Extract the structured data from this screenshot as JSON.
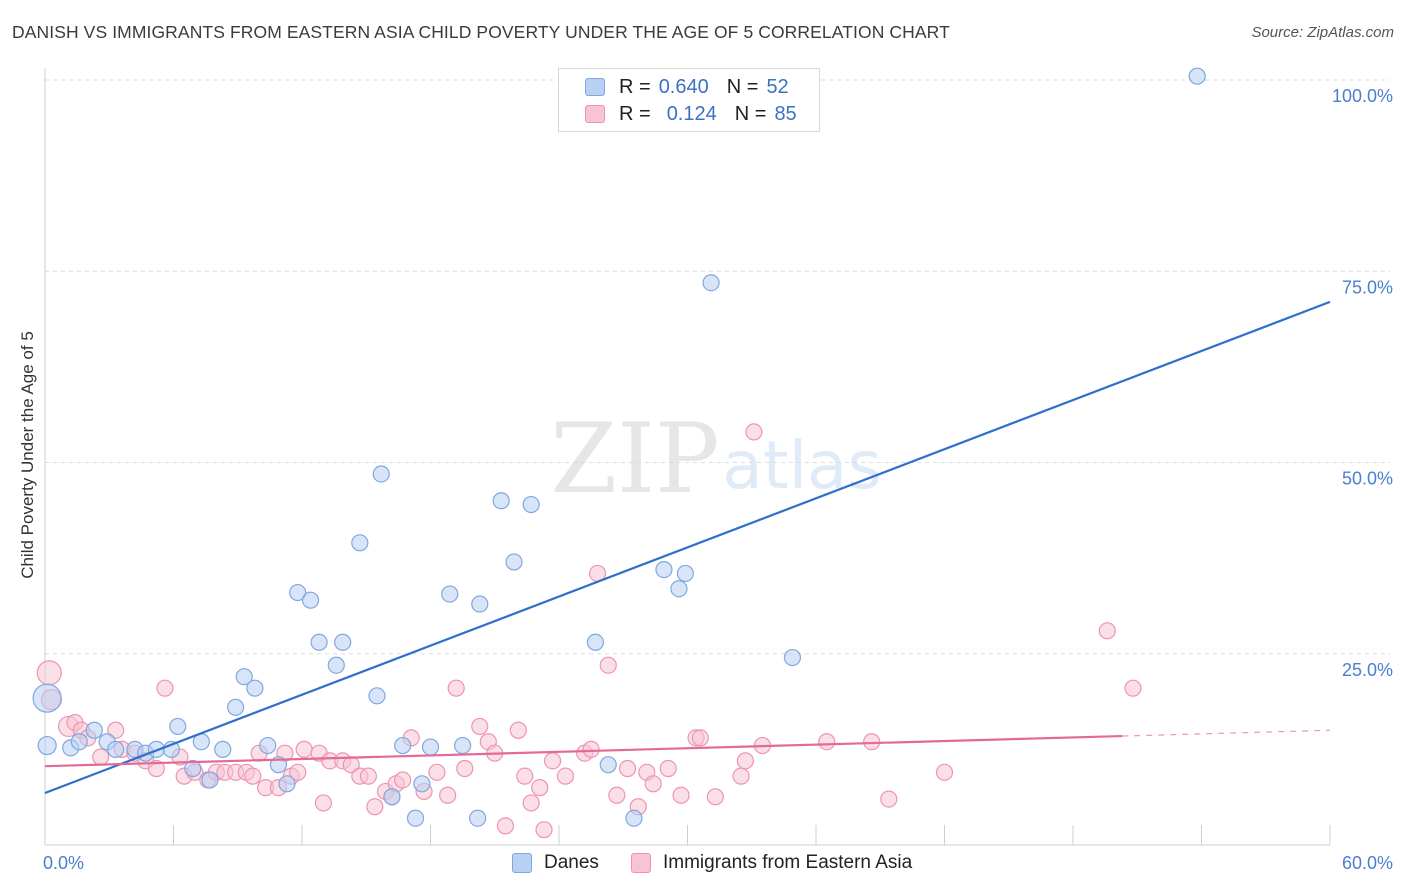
{
  "header": {
    "title": "DANISH VS IMMIGRANTS FROM EASTERN ASIA CHILD POVERTY UNDER THE AGE OF 5 CORRELATION CHART",
    "source": "Source: ZipAtlas.com"
  },
  "watermark": {
    "zip": "ZIP",
    "atlas": "atlas"
  },
  "legend": {
    "rows": [
      {
        "r_label": "R =",
        "r_value": "0.640",
        "n_label": "N =",
        "n_value": "52"
      },
      {
        "r_label": "R =",
        "r_value": "0.124",
        "n_label": "N =",
        "n_value": "85"
      }
    ]
  },
  "bottom_legend": {
    "danes": "Danes",
    "immigrants": "Immigrants from Eastern Asia"
  },
  "colors": {
    "danes_fill": "#b8d0f2",
    "danes_stroke": "#7ea8e0",
    "danes_line": "#2f6fcc",
    "imm_fill": "#f7c4d4",
    "imm_stroke": "#ee94b2",
    "imm_line": "#e36a98",
    "tick_text": "#4a7fcf",
    "grid": "#dedede"
  },
  "chart_data": {
    "type": "scatter",
    "title": "DANISH VS IMMIGRANTS FROM EASTERN ASIA CHILD POVERTY UNDER THE AGE OF 5 CORRELATION CHART",
    "xlabel": "",
    "ylabel": "Child Poverty Under the Age of 5",
    "xlim": [
      0,
      60
    ],
    "ylim": [
      0,
      100
    ],
    "x_tick_labels": [
      "0.0%",
      "60.0%"
    ],
    "y_ticks": [
      {
        "value": 25,
        "label": "25.0%"
      },
      {
        "value": 50,
        "label": "50.0%"
      },
      {
        "value": 75,
        "label": "75.0%"
      },
      {
        "value": 100,
        "label": "100.0%"
      }
    ],
    "grid": true,
    "legend_position": "top-center",
    "series": [
      {
        "name": "Danes",
        "R": 0.64,
        "N": 52,
        "trend": {
          "x": [
            0,
            60
          ],
          "y": [
            6.8,
            71.0
          ],
          "dashed_from": null
        },
        "points": [
          [
            0.1,
            19.2,
            14
          ],
          [
            0.1,
            13.0,
            9
          ],
          [
            1.2,
            12.7,
            8
          ],
          [
            1.6,
            13.5,
            8
          ],
          [
            2.3,
            15.0,
            8
          ],
          [
            2.9,
            13.5,
            8
          ],
          [
            3.3,
            12.5,
            8
          ],
          [
            4.2,
            12.5,
            8
          ],
          [
            4.7,
            12.0,
            8
          ],
          [
            5.2,
            12.5,
            8
          ],
          [
            5.9,
            12.5,
            8
          ],
          [
            6.2,
            15.5,
            8
          ],
          [
            6.9,
            10.0,
            8
          ],
          [
            7.3,
            13.5,
            8
          ],
          [
            7.7,
            8.5,
            8
          ],
          [
            8.3,
            12.5,
            8
          ],
          [
            8.9,
            18.0,
            8
          ],
          [
            9.3,
            22.0,
            8
          ],
          [
            9.8,
            20.5,
            8
          ],
          [
            10.4,
            13.0,
            8
          ],
          [
            10.9,
            10.5,
            8
          ],
          [
            11.3,
            8.0,
            8
          ],
          [
            11.8,
            33.0,
            8
          ],
          [
            12.4,
            32.0,
            8
          ],
          [
            12.8,
            26.5,
            8
          ],
          [
            13.6,
            23.5,
            8
          ],
          [
            13.9,
            26.5,
            8
          ],
          [
            14.7,
            39.5,
            8
          ],
          [
            15.5,
            19.5,
            8
          ],
          [
            15.7,
            48.5,
            8
          ],
          [
            16.2,
            6.3,
            8
          ],
          [
            16.7,
            13.0,
            8
          ],
          [
            17.3,
            3.5,
            8
          ],
          [
            17.6,
            8.0,
            8
          ],
          [
            18.0,
            12.8,
            8
          ],
          [
            18.9,
            32.8,
            8
          ],
          [
            19.5,
            13.0,
            8
          ],
          [
            20.2,
            3.5,
            8
          ],
          [
            20.3,
            31.5,
            8
          ],
          [
            21.3,
            45.0,
            8
          ],
          [
            21.9,
            37.0,
            8
          ],
          [
            22.7,
            44.5,
            8
          ],
          [
            25.7,
            26.5,
            8
          ],
          [
            26.3,
            10.5,
            8
          ],
          [
            27.5,
            3.5,
            8
          ],
          [
            28.9,
            36.0,
            8
          ],
          [
            29.6,
            33.5,
            8
          ],
          [
            29.9,
            35.5,
            8
          ],
          [
            31.1,
            73.5,
            8
          ],
          [
            34.9,
            24.5,
            8
          ],
          [
            53.8,
            100.5,
            8
          ]
        ]
      },
      {
        "name": "Immigrants from Eastern Asia",
        "R": 0.124,
        "N": 85,
        "trend": {
          "x": [
            0,
            60
          ],
          "y": [
            10.3,
            15.0
          ],
          "dashed_from": 50.3
        },
        "points": [
          [
            0.2,
            22.5,
            12
          ],
          [
            0.3,
            19.0,
            10
          ],
          [
            1.1,
            15.5,
            10
          ],
          [
            1.4,
            16.0,
            8
          ],
          [
            1.7,
            15.0,
            8
          ],
          [
            2.0,
            14.0,
            8
          ],
          [
            2.6,
            11.5,
            8
          ],
          [
            3.3,
            15.0,
            8
          ],
          [
            3.6,
            12.5,
            8
          ],
          [
            4.2,
            12.0,
            8
          ],
          [
            4.7,
            11.0,
            8
          ],
          [
            5.2,
            10.0,
            8
          ],
          [
            5.6,
            20.5,
            8
          ],
          [
            6.3,
            11.5,
            8
          ],
          [
            6.5,
            9.0,
            8
          ],
          [
            7.0,
            9.5,
            8
          ],
          [
            7.6,
            8.5,
            8
          ],
          [
            8.0,
            9.5,
            8
          ],
          [
            8.4,
            9.5,
            8
          ],
          [
            8.9,
            9.5,
            8
          ],
          [
            9.4,
            9.5,
            8
          ],
          [
            9.7,
            9.0,
            8
          ],
          [
            10.0,
            12.0,
            8
          ],
          [
            10.3,
            7.5,
            8
          ],
          [
            10.9,
            7.5,
            8
          ],
          [
            11.2,
            12.0,
            8
          ],
          [
            11.5,
            9.0,
            8
          ],
          [
            11.8,
            9.5,
            8
          ],
          [
            12.1,
            12.5,
            8
          ],
          [
            12.8,
            12.0,
            8
          ],
          [
            13.0,
            5.5,
            8
          ],
          [
            13.3,
            11.0,
            8
          ],
          [
            13.9,
            11.0,
            8
          ],
          [
            14.3,
            10.5,
            8
          ],
          [
            14.7,
            9.0,
            8
          ],
          [
            15.1,
            9.0,
            8
          ],
          [
            15.4,
            5.0,
            8
          ],
          [
            15.9,
            7.0,
            8
          ],
          [
            16.2,
            6.3,
            8
          ],
          [
            16.4,
            8.0,
            8
          ],
          [
            16.7,
            8.5,
            8
          ],
          [
            17.1,
            14.0,
            8
          ],
          [
            17.7,
            7.0,
            8
          ],
          [
            18.3,
            9.5,
            8
          ],
          [
            18.8,
            6.5,
            8
          ],
          [
            19.2,
            20.5,
            8
          ],
          [
            19.6,
            10.0,
            8
          ],
          [
            20.3,
            15.5,
            8
          ],
          [
            20.7,
            13.5,
            8
          ],
          [
            21.0,
            12.0,
            8
          ],
          [
            21.5,
            2.5,
            8
          ],
          [
            22.1,
            15.0,
            8
          ],
          [
            22.4,
            9.0,
            8
          ],
          [
            22.7,
            5.5,
            8
          ],
          [
            23.1,
            7.5,
            8
          ],
          [
            23.3,
            2.0,
            8
          ],
          [
            23.7,
            11.0,
            8
          ],
          [
            24.3,
            9.0,
            8
          ],
          [
            25.2,
            12.0,
            8
          ],
          [
            25.5,
            12.5,
            8
          ],
          [
            25.8,
            35.5,
            8
          ],
          [
            26.3,
            23.5,
            8
          ],
          [
            26.7,
            6.5,
            8
          ],
          [
            27.2,
            10.0,
            8
          ],
          [
            27.7,
            5.0,
            8
          ],
          [
            28.1,
            9.5,
            8
          ],
          [
            28.4,
            8.0,
            8
          ],
          [
            29.1,
            10.0,
            8
          ],
          [
            29.7,
            6.5,
            8
          ],
          [
            30.4,
            14.0,
            8
          ],
          [
            30.6,
            14.0,
            8
          ],
          [
            31.3,
            6.3,
            8
          ],
          [
            32.5,
            9.0,
            8
          ],
          [
            32.7,
            11.0,
            8
          ],
          [
            33.1,
            54.0,
            8
          ],
          [
            33.5,
            13.0,
            8
          ],
          [
            36.5,
            13.5,
            8
          ],
          [
            38.6,
            13.5,
            8
          ],
          [
            39.4,
            6.0,
            8
          ],
          [
            42.0,
            9.5,
            8
          ],
          [
            49.6,
            28.0,
            8
          ],
          [
            50.8,
            20.5,
            8
          ]
        ]
      }
    ]
  }
}
